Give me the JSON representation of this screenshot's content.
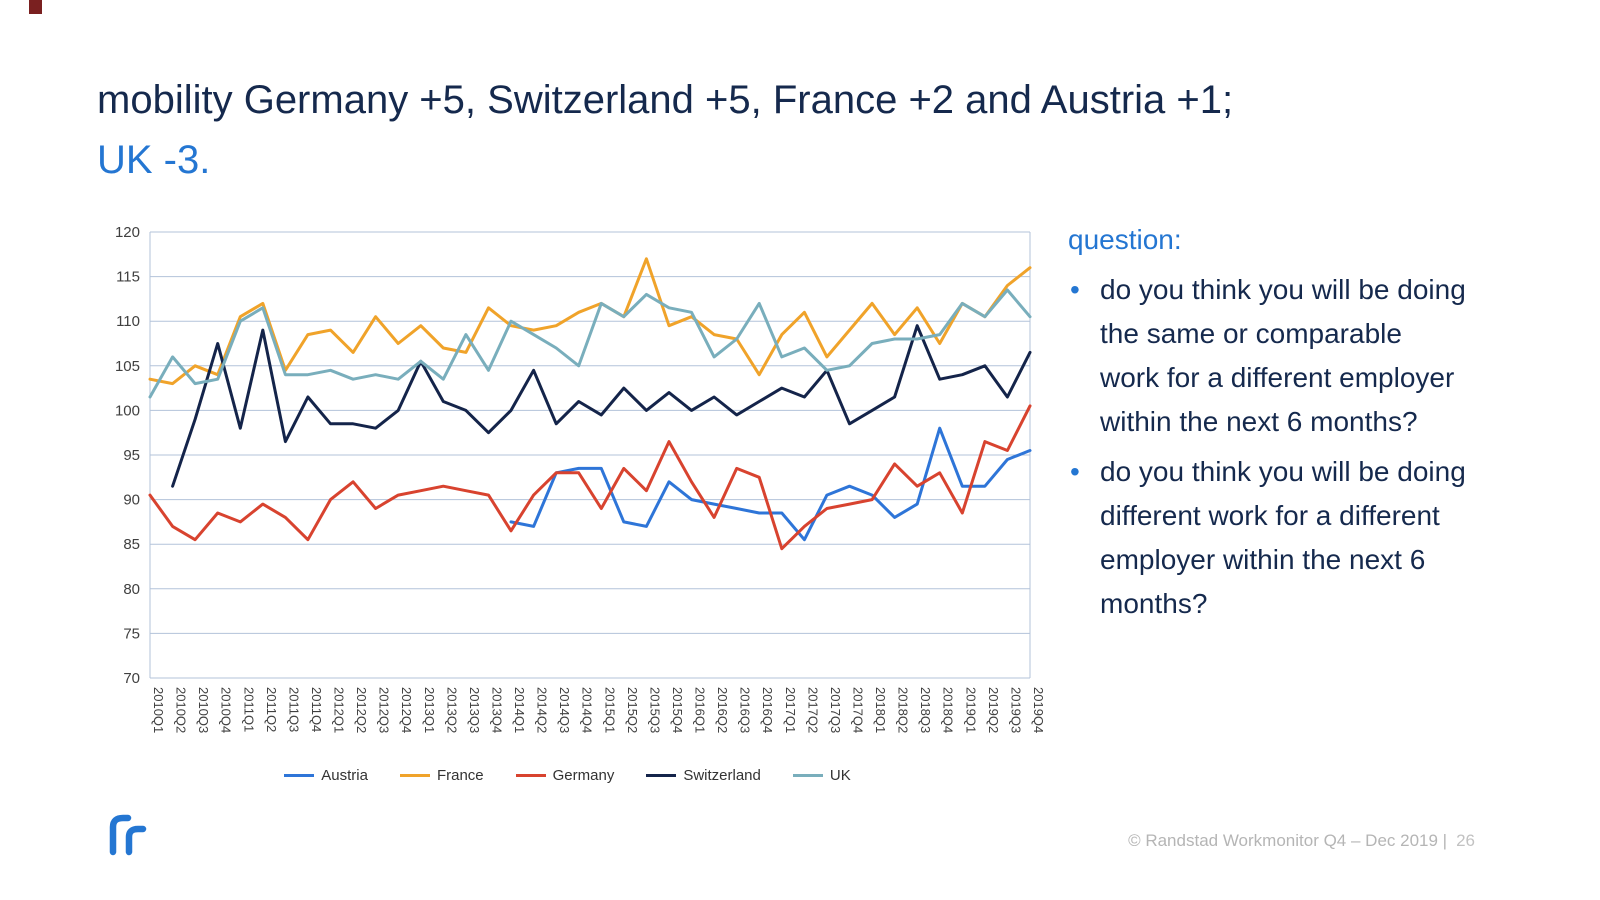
{
  "slide": {
    "title_line1": "mobility Germany +5, Switzerland +5, France +2 and Austria +1;",
    "title_line2": "UK -3.",
    "footer": "© Randstad Workmonitor Q4 – Dec 2019 |",
    "footer_page": "26"
  },
  "question": {
    "heading": "question:",
    "bullets": [
      "do you think you will be doing the same or comparable work for a different employer within the next 6 months?",
      "do you think you will be doing different work for a different employer within the next 6 months?"
    ]
  },
  "colors": {
    "accent_blue": "#2476d2",
    "title_navy": "#15294d",
    "grid": "#b3c3da",
    "tick_text": "#404040",
    "footer_gray": "#b5b5b5"
  },
  "chart_data": {
    "type": "line",
    "title": "",
    "xlabel": "",
    "ylabel": "",
    "ylim": [
      70,
      120
    ],
    "ytick_step": 5,
    "grid": true,
    "legend_position": "bottom",
    "x": [
      "2010Q1",
      "2010Q2",
      "2010Q3",
      "2010Q4",
      "2011Q1",
      "2011Q2",
      "2011Q3",
      "2011Q4",
      "2012Q1",
      "2012Q2",
      "2012Q3",
      "2012Q4",
      "2013Q1",
      "2013Q2",
      "2013Q3",
      "2013Q4",
      "2014Q1",
      "2014Q2",
      "2014Q3",
      "2014Q4",
      "2015Q1",
      "2015Q2",
      "2015Q3",
      "2015Q4",
      "2016Q1",
      "2016Q2",
      "2016Q3",
      "2016Q4",
      "2017Q1",
      "2017Q2",
      "2017Q3",
      "2017Q4",
      "2018Q1",
      "2018Q2",
      "2018Q3",
      "2018Q4",
      "2019Q1",
      "2019Q2",
      "2019Q3",
      "2019Q4"
    ],
    "series": [
      {
        "name": "Austria",
        "color": "#2e75d8",
        "values": [
          null,
          null,
          null,
          null,
          null,
          null,
          null,
          null,
          null,
          null,
          null,
          null,
          null,
          null,
          null,
          null,
          87.5,
          87,
          93,
          93.5,
          93.5,
          87.5,
          87,
          92,
          90,
          89.5,
          89,
          88.5,
          88.5,
          85.5,
          90.5,
          91.5,
          90.5,
          88,
          89.5,
          98,
          91.5,
          91.5,
          94.5,
          95.5
        ]
      },
      {
        "name": "France",
        "color": "#f0a32a",
        "values": [
          103.5,
          103,
          105,
          104,
          110.5,
          112,
          104.5,
          108.5,
          109,
          106.5,
          110.5,
          107.5,
          109.5,
          107,
          106.5,
          111.5,
          109.5,
          109,
          109.5,
          111,
          112,
          110.5,
          117,
          109.5,
          110.5,
          108.5,
          108,
          104,
          108.5,
          111,
          106,
          109,
          112,
          108.5,
          111.5,
          107.5,
          112,
          110.5,
          114,
          116
        ]
      },
      {
        "name": "Germany",
        "color": "#d8432f",
        "values": [
          90.5,
          87,
          85.5,
          88.5,
          87.5,
          89.5,
          88,
          85.5,
          90,
          92,
          89,
          90.5,
          91,
          91.5,
          91,
          90.5,
          86.5,
          90.5,
          93,
          93,
          89,
          93.5,
          91,
          96.5,
          92,
          88,
          93.5,
          92.5,
          84.5,
          87,
          89,
          89.5,
          90,
          94,
          91.5,
          93,
          88.5,
          96.5,
          95.5,
          100.5
        ]
      },
      {
        "name": "Switzerland",
        "color": "#14244a",
        "values": [
          null,
          91.5,
          99,
          107.5,
          98,
          109,
          96.5,
          101.5,
          98.5,
          98.5,
          98,
          100,
          105.5,
          101,
          100,
          97.5,
          100,
          104.5,
          98.5,
          101,
          99.5,
          102.5,
          100,
          102,
          100,
          101.5,
          99.5,
          101,
          102.5,
          101.5,
          104.5,
          98.5,
          100,
          101.5,
          109.5,
          103.5,
          104,
          105,
          101.5,
          106.5
        ]
      },
      {
        "name": "UK",
        "color": "#79aebc",
        "values": [
          101.5,
          106,
          103,
          103.5,
          110,
          111.5,
          104,
          104,
          104.5,
          103.5,
          104,
          103.5,
          105.5,
          103.5,
          108.5,
          104.5,
          110,
          108.5,
          107,
          105,
          112,
          110.5,
          113,
          111.5,
          111,
          106,
          108,
          112,
          106,
          107,
          104.5,
          105,
          107.5,
          108,
          108,
          108.5,
          112,
          110.5,
          113.5,
          110.5
        ]
      }
    ]
  }
}
